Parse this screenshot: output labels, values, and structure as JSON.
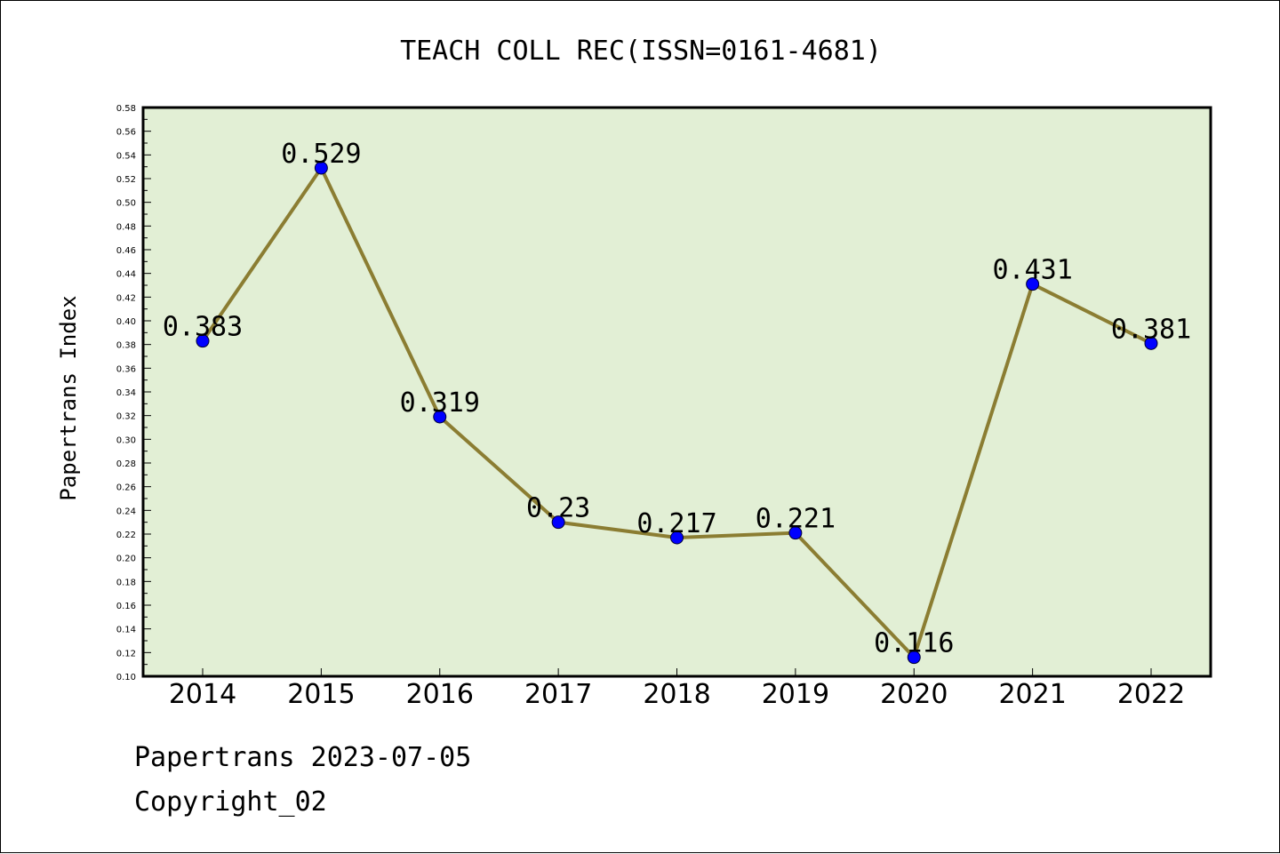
{
  "chart_data": {
    "type": "line",
    "title": "TEACH COLL REC(ISSN=0161-4681)",
    "xlabel": "",
    "ylabel": "Papertrans Index",
    "categories": [
      "2014",
      "2015",
      "2016",
      "2017",
      "2018",
      "2019",
      "2020",
      "2021",
      "2022"
    ],
    "values": [
      0.383,
      0.529,
      0.319,
      0.23,
      0.217,
      0.221,
      0.116,
      0.431,
      0.381
    ],
    "data_labels": [
      "0.383",
      "0.529",
      "0.319",
      "0.23",
      "0.217",
      "0.221",
      "0.116",
      "0.431",
      "0.381"
    ],
    "ylim": [
      0.1,
      0.58
    ],
    "yticks": [
      "0.10",
      "0.12",
      "0.14",
      "0.16",
      "0.18",
      "0.20",
      "0.22",
      "0.24",
      "0.26",
      "0.28",
      "0.30",
      "0.32",
      "0.34",
      "0.36",
      "0.38",
      "0.40",
      "0.42",
      "0.44",
      "0.46",
      "0.48",
      "0.50",
      "0.52",
      "0.54",
      "0.56",
      "0.58"
    ],
    "grid": false,
    "legend": "none",
    "colors": {
      "plot_background": "#e2efd5",
      "line": "#8b7d32",
      "marker": "#0000ff"
    }
  },
  "footer": {
    "line1": "Papertrans 2023-07-05",
    "line2": "Copyright_02"
  }
}
